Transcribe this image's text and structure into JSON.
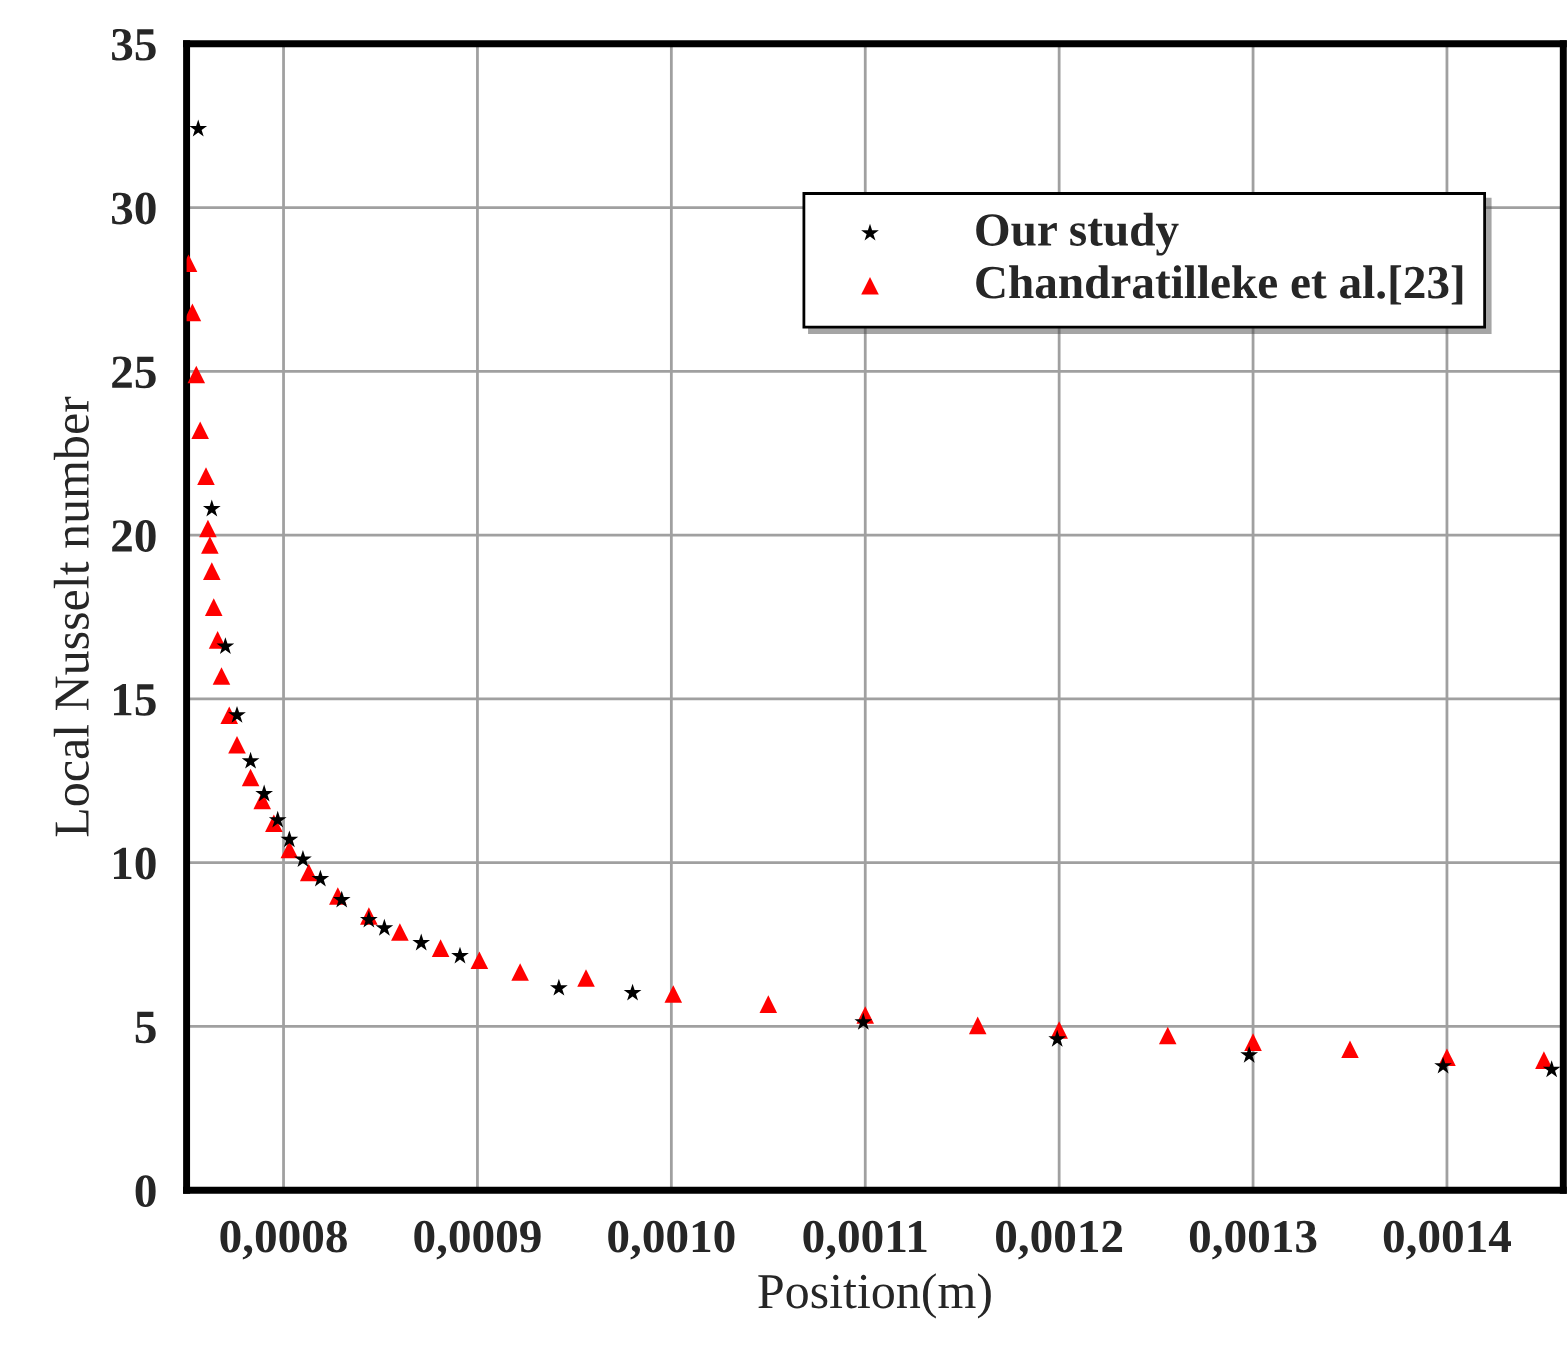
{
  "chart_data": {
    "type": "scatter",
    "xlabel": "Position(m)",
    "ylabel": "Local Nusselt number",
    "xlim": [
      0.00075,
      0.00146
    ],
    "ylim": [
      0,
      35
    ],
    "xticks": [
      {
        "value": 0.0008,
        "label": "0,0008"
      },
      {
        "value": 0.0009,
        "label": "0,0009"
      },
      {
        "value": 0.001,
        "label": "0,0010"
      },
      {
        "value": 0.0011,
        "label": "0,0011"
      },
      {
        "value": 0.0012,
        "label": "0,0012"
      },
      {
        "value": 0.0013,
        "label": "0,0013"
      },
      {
        "value": 0.0014,
        "label": "0,0014"
      }
    ],
    "yticks": [
      0,
      5,
      10,
      15,
      20,
      25,
      30,
      35
    ],
    "grid": true,
    "legend": "top right",
    "series": [
      {
        "name": "Our study",
        "color": "#000000",
        "marker": "star",
        "x": [
          0.000756,
          0.000763,
          0.00077,
          0.000776,
          0.000783,
          0.00079,
          0.000797,
          0.000803,
          0.00081,
          0.000819,
          0.00083,
          0.000844,
          0.000852,
          0.000871,
          0.000891,
          0.000942,
          0.00098,
          0.001099,
          0.001199,
          0.001298,
          0.001398,
          0.001454
        ],
        "values": [
          32.4,
          20.8,
          16.6,
          14.5,
          13.1,
          12.1,
          11.3,
          10.7,
          10.1,
          9.5,
          8.86,
          8.25,
          8.0,
          7.55,
          7.15,
          6.17,
          6.02,
          5.13,
          4.61,
          4.12,
          3.79,
          3.68
        ]
      },
      {
        "name": "Chandratilleke et al.[23]",
        "color": "#ff0000",
        "marker": "triangle",
        "x": [
          0.000751,
          0.000753,
          0.000755,
          0.000757,
          0.00076,
          0.000761,
          0.000762,
          0.000763,
          0.000764,
          0.000766,
          0.000768,
          0.000772,
          0.000776,
          0.000783,
          0.000789,
          0.000795,
          0.000803,
          0.000813,
          0.000828,
          0.000844,
          0.00086,
          0.000881,
          0.000901,
          0.000922,
          0.000956,
          0.001001,
          0.00105,
          0.0011,
          0.001158,
          0.0012,
          0.001256,
          0.0013,
          0.00135,
          0.0014,
          0.00145
        ],
        "values": [
          28.3,
          26.8,
          24.9,
          23.2,
          21.8,
          20.2,
          19.7,
          18.9,
          17.8,
          16.8,
          15.7,
          14.5,
          13.6,
          12.6,
          11.9,
          11.2,
          10.4,
          9.7,
          8.98,
          8.37,
          7.88,
          7.39,
          7.02,
          6.66,
          6.48,
          5.99,
          5.68,
          5.35,
          5.03,
          4.89,
          4.72,
          4.52,
          4.3,
          4.06,
          3.97
        ]
      }
    ]
  }
}
